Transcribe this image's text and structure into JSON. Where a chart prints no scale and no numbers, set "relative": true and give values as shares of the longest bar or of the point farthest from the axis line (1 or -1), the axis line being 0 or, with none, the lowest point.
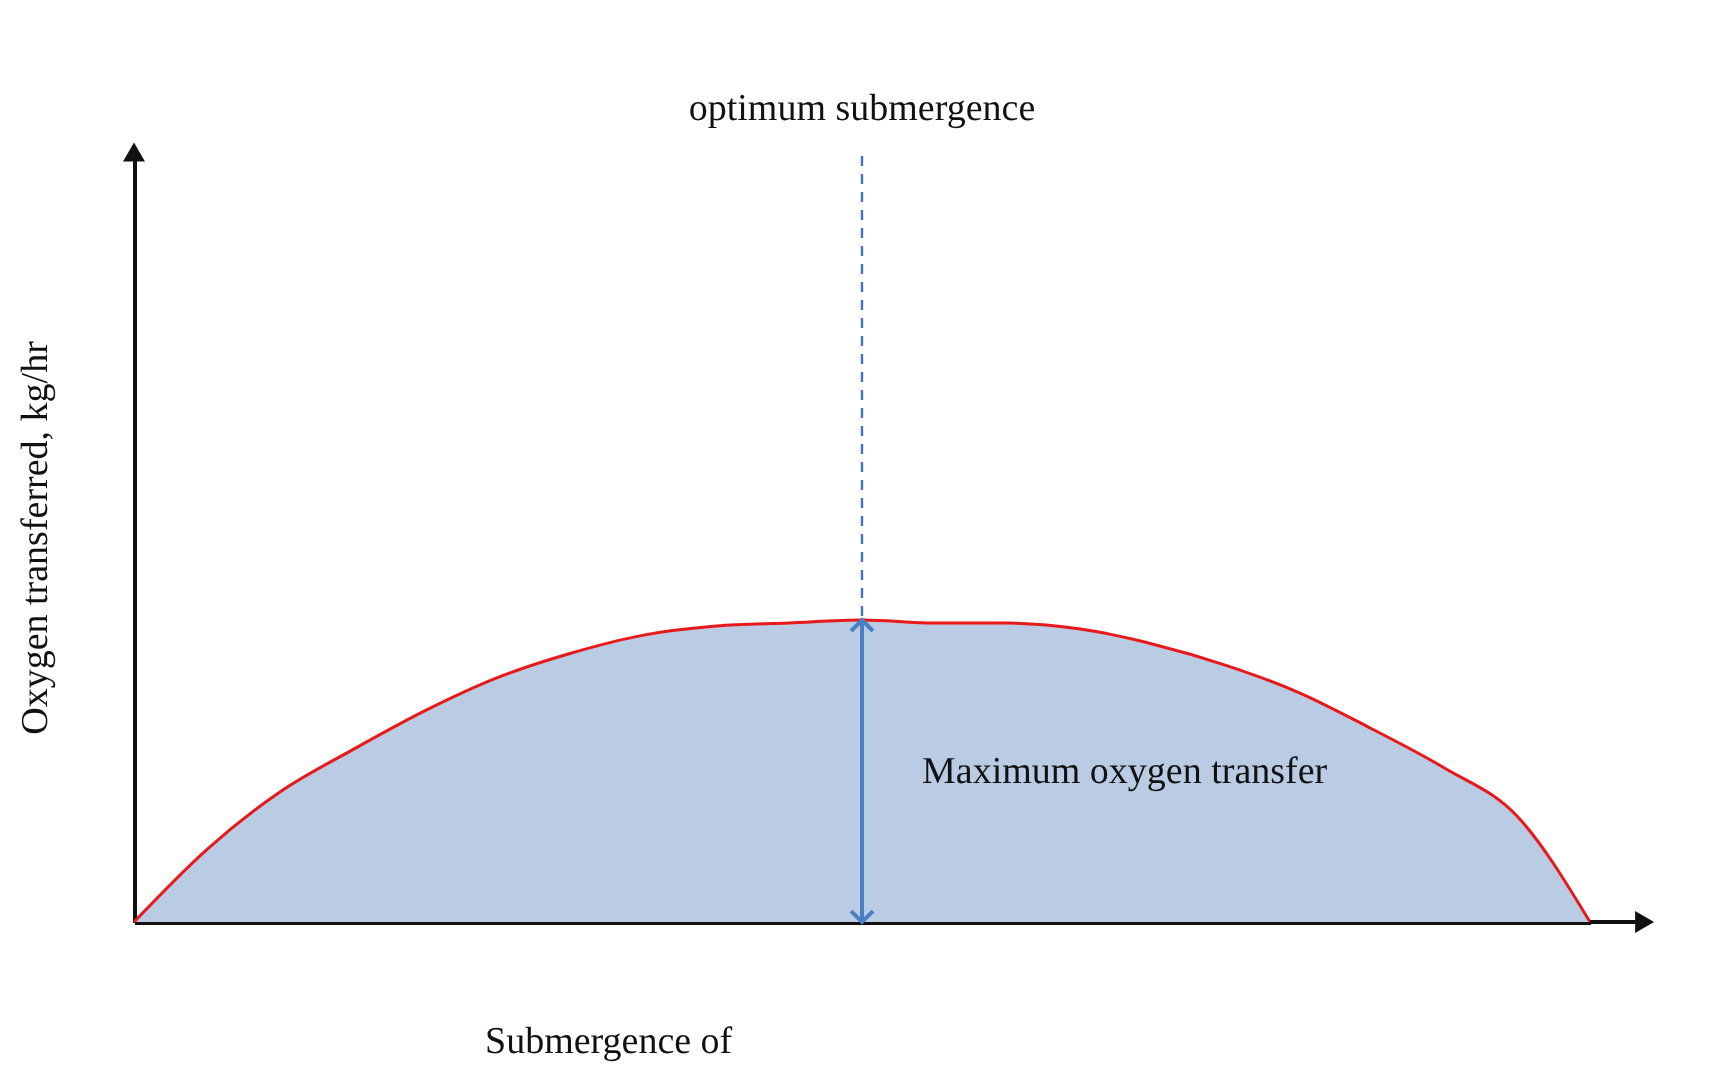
{
  "chart_data": {
    "type": "area",
    "relative": true,
    "ylabel": "Oxygen transferred, kg/hr",
    "xlabel": "Submergence of",
    "categories": [
      null,
      null,
      null,
      null,
      null,
      null,
      null,
      null,
      null,
      null,
      null,
      null,
      null,
      null,
      null,
      null,
      null,
      null,
      null,
      null,
      null
    ],
    "series": [
      {
        "color": "#b9cce4",
        "values": [
          0,
          0.24,
          0.43,
          0.57,
          0.7,
          0.81,
          0.89,
          0.95,
          0.98,
          0.99,
          1,
          0.99,
          0.99,
          0.97,
          0.92,
          0.85,
          0.76,
          0.64,
          0.51,
          0.35,
          0
        ]
      }
    ],
    "ref_lines": [
      {
        "axis": "x",
        "label": "optimum submergence",
        "color": "#4472c4",
        "line_style": "dashed"
      }
    ],
    "annotations": [
      "Maximum oxygen transfer"
    ],
    "grid": false
  }
}
